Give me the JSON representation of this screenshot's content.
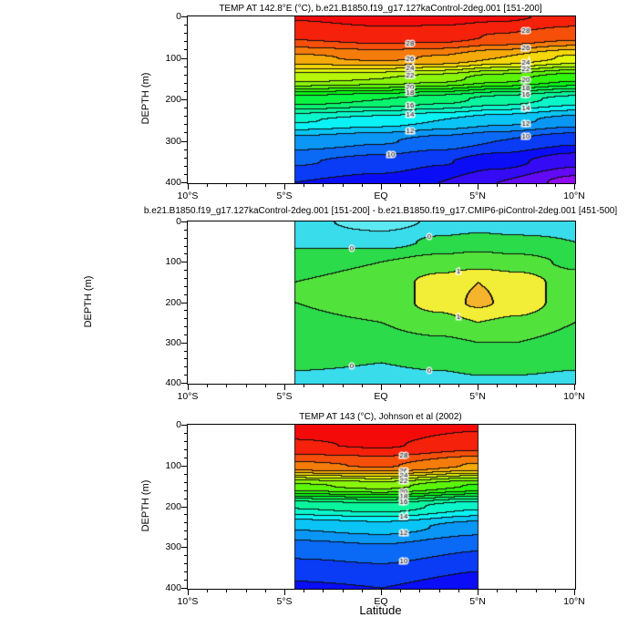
{
  "figure": {
    "background": "#ffffff",
    "xlabel": "Latitude",
    "ylabel": "DEPTH (m)",
    "x_ticks": [
      {
        "lat": -10,
        "label": "10°S"
      },
      {
        "lat": -5,
        "label": "5°S"
      },
      {
        "lat": 0,
        "label": "EQ"
      },
      {
        "lat": 5,
        "label": "5°N"
      },
      {
        "lat": 10,
        "label": "10°N"
      }
    ],
    "y_ticks": [
      {
        "depth": 0,
        "label": "0"
      },
      {
        "depth": 100,
        "label": "100"
      },
      {
        "depth": 200,
        "label": "200"
      },
      {
        "depth": 300,
        "label": "300"
      },
      {
        "depth": 400,
        "label": "400"
      }
    ]
  },
  "chart_data": [
    {
      "type": "heatmap",
      "style": "filled-contour-section",
      "title": "TEMP AT 142.8°E (°C), b.e21.B1850.f19_g17.127kaControl-2deg.001 [151-200]",
      "units": "°C",
      "x_axis": {
        "label": "Latitude",
        "range": [
          -10,
          10
        ]
      },
      "y_axis": {
        "label": "DEPTH (m)",
        "range": [
          0,
          400
        ],
        "inverted": true
      },
      "data_lat_range": [
        -4.5,
        10
      ],
      "contour_interval": 1,
      "grid": {
        "lats": [
          -4.5,
          0,
          3,
          6,
          10
        ],
        "depths": [
          0,
          50,
          100,
          150,
          200,
          250,
          300,
          350,
          400
        ],
        "values": [
          [
            29.1,
            29.4,
            29.4,
            29.2,
            28.7
          ],
          [
            28.1,
            28.5,
            28.4,
            27.9,
            27.2
          ],
          [
            25.8,
            26.2,
            25.9,
            25.0,
            23.8
          ],
          [
            22.3,
            22.0,
            21.4,
            20.4,
            19.2
          ],
          [
            17.6,
            17.0,
            16.4,
            15.6,
            14.6
          ],
          [
            14.1,
            13.6,
            13.0,
            12.4,
            11.6
          ],
          [
            11.6,
            11.1,
            10.6,
            10.0,
            9.2
          ],
          [
            10.1,
            9.6,
            9.1,
            8.4,
            7.3
          ],
          [
            9.0,
            8.6,
            8.0,
            7.0,
            5.6
          ]
        ]
      },
      "contour_labels": [
        {
          "level": 28,
          "lats": [
            1.5,
            7.5
          ]
        },
        {
          "level": 26,
          "lats": [
            1.5,
            7.5
          ]
        },
        {
          "level": 24,
          "lats": [
            1.5,
            7.5
          ]
        },
        {
          "level": 22,
          "lats": [
            1.5,
            7.5
          ]
        },
        {
          "level": 20,
          "lats": [
            1.5,
            7.5
          ]
        },
        {
          "level": 18,
          "lats": [
            1.5,
            7.5
          ]
        },
        {
          "level": 16,
          "lats": [
            1.5,
            7.5
          ]
        },
        {
          "level": 14,
          "lats": [
            1.5,
            7.5
          ]
        },
        {
          "level": 12,
          "lats": [
            1.5,
            7.5
          ]
        },
        {
          "level": 10,
          "lats": [
            0.5,
            7.5
          ]
        }
      ],
      "colors": {
        "type": "rainbow",
        "value_min": 5,
        "value_max": 29,
        "hue_span": 280
      }
    },
    {
      "type": "heatmap",
      "style": "filled-contour-section",
      "title": "b.e21.B1850.f19_g17.127kaControl-2deg.001 [151-200] - b.e21.B1850.f19_g17.CMIP6-piControl-2deg.001 [451-500]",
      "units": "°C",
      "x_axis": {
        "label": "Latitude",
        "range": [
          -10,
          10
        ]
      },
      "y_axis": {
        "label": "DEPTH (m)",
        "range": [
          0,
          400
        ],
        "inverted": true
      },
      "data_lat_range": [
        -4.5,
        10
      ],
      "contour_interval": 0.5,
      "grid": {
        "lats": [
          -4.5,
          0,
          3,
          5,
          7,
          10
        ],
        "depths": [
          0,
          50,
          100,
          150,
          200,
          250,
          300,
          350,
          400
        ],
        "values": [
          [
            -0.3,
            -0.75,
            -0.4,
            -0.3,
            -0.3,
            -0.2
          ],
          [
            -0.1,
            -0.2,
            0.1,
            0.2,
            0.1,
            0.0
          ],
          [
            0.3,
            0.5,
            0.7,
            0.8,
            0.7,
            0.4
          ],
          [
            0.5,
            0.7,
            1.2,
            1.5,
            1.3,
            0.7
          ],
          [
            0.5,
            0.7,
            1.2,
            1.6,
            1.3,
            0.7
          ],
          [
            0.4,
            0.5,
            0.8,
            1.0,
            0.9,
            0.5
          ],
          [
            0.3,
            0.3,
            0.4,
            0.5,
            0.5,
            0.3
          ],
          [
            0.1,
            0.0,
            0.1,
            0.2,
            0.2,
            0.1
          ],
          [
            -0.2,
            -0.3,
            -0.2,
            -0.1,
            -0.1,
            -0.2
          ]
        ]
      },
      "contour_labels": [
        {
          "level": 0,
          "lats": [
            -1.5,
            2.5
          ]
        },
        {
          "level": 1,
          "lats": [
            4.0
          ]
        }
      ],
      "colors": {
        "type": "bands",
        "levels": [
          -0.5,
          0,
          0.5,
          1,
          1.5
        ],
        "band_colors": [
          "#5ce9f2",
          "#39dcea",
          "#2bdb4a",
          "#52e23c",
          "#f2ee38",
          "#f6b42c"
        ]
      }
    },
    {
      "type": "heatmap",
      "style": "filled-contour-section",
      "title": "TEMP AT 143 (°C), Johnson et al (2002)",
      "units": "°C",
      "x_axis": {
        "label": "Latitude",
        "range": [
          -10,
          10
        ]
      },
      "y_axis": {
        "label": "DEPTH (m)",
        "range": [
          0,
          400
        ],
        "inverted": true
      },
      "data_lat_range": [
        -4.5,
        5
      ],
      "contour_interval": 1,
      "grid": {
        "lats": [
          -4.5,
          0,
          5
        ],
        "depths": [
          0,
          50,
          100,
          150,
          200,
          250,
          300,
          350,
          400
        ],
        "values": [
          [
            29.4,
            29.6,
            29.2
          ],
          [
            28.9,
            29.1,
            28.4
          ],
          [
            26.8,
            27.1,
            25.9
          ],
          [
            20.8,
            21.3,
            19.9
          ],
          [
            15.1,
            15.6,
            14.2
          ],
          [
            12.1,
            12.5,
            11.5
          ],
          [
            10.6,
            10.9,
            10.1
          ],
          [
            9.6,
            9.9,
            9.1
          ],
          [
            8.8,
            9.0,
            8.2
          ]
        ]
      },
      "contour_labels": [
        {
          "level": 28,
          "lats": [
            1.2
          ]
        },
        {
          "level": 26,
          "lats": [
            1.2
          ]
        },
        {
          "level": 24,
          "lats": [
            1.2
          ]
        },
        {
          "level": 22,
          "lats": [
            1.2
          ]
        },
        {
          "level": 20,
          "lats": [
            1.2
          ]
        },
        {
          "level": 18,
          "lats": [
            1.2
          ]
        },
        {
          "level": 16,
          "lats": [
            1.2
          ]
        },
        {
          "level": 14,
          "lats": [
            1.2
          ]
        },
        {
          "level": 12,
          "lats": [
            1.2
          ]
        },
        {
          "level": 10,
          "lats": [
            1.2
          ]
        }
      ],
      "colors": {
        "type": "rainbow",
        "value_min": 5,
        "value_max": 29,
        "hue_span": 280
      }
    }
  ]
}
